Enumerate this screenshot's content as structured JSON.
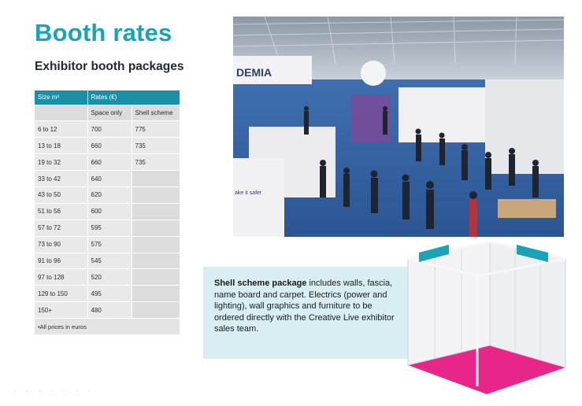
{
  "page": {
    "title": "Booth rates",
    "subtitle": "Exhibitor booth packages"
  },
  "table": {
    "header": {
      "size": "Size m²",
      "rates": "Rates (€)"
    },
    "subheader": {
      "space_only": "Space only",
      "shell_scheme": "Shell scheme"
    },
    "rows": [
      {
        "size": "6 to 12",
        "space_only": "700",
        "shell": "775"
      },
      {
        "size": "13 to 18",
        "space_only": "660",
        "shell": "735"
      },
      {
        "size": "19 to 32",
        "space_only": "660",
        "shell": "735"
      },
      {
        "size": "33 to 42",
        "space_only": "640",
        "shell": ""
      },
      {
        "size": "43 to 50",
        "space_only": "620",
        "shell": ""
      },
      {
        "size": "51 to 56",
        "space_only": "600",
        "shell": ""
      },
      {
        "size": "57 to 72",
        "space_only": "595",
        "shell": ""
      },
      {
        "size": "73 to 90",
        "space_only": "575",
        "shell": ""
      },
      {
        "size": "91 to 96",
        "space_only": "545",
        "shell": ""
      },
      {
        "size": "97 to 128",
        "space_only": "520",
        "shell": ""
      },
      {
        "size": "129 to 150",
        "space_only": "495",
        "shell": ""
      },
      {
        "size": "150+",
        "space_only": "480",
        "shell": ""
      }
    ],
    "note": "•All prices in euros"
  },
  "info": {
    "bold": "Shell scheme package",
    "text": " includes walls, fascia, name board and carpet. Electrics (power and lighting), wall graphics and furniture to be ordered directly with the Creative Live exhibitor sales team."
  },
  "photo": {
    "sign_text": "DEMIA",
    "banner_text": "ake it safer"
  },
  "colors": {
    "accent": "#1aa3b8",
    "table_header": "#1a8fa6",
    "info_bg": "#d9eef2",
    "booth_carpet": "#e8268a"
  }
}
